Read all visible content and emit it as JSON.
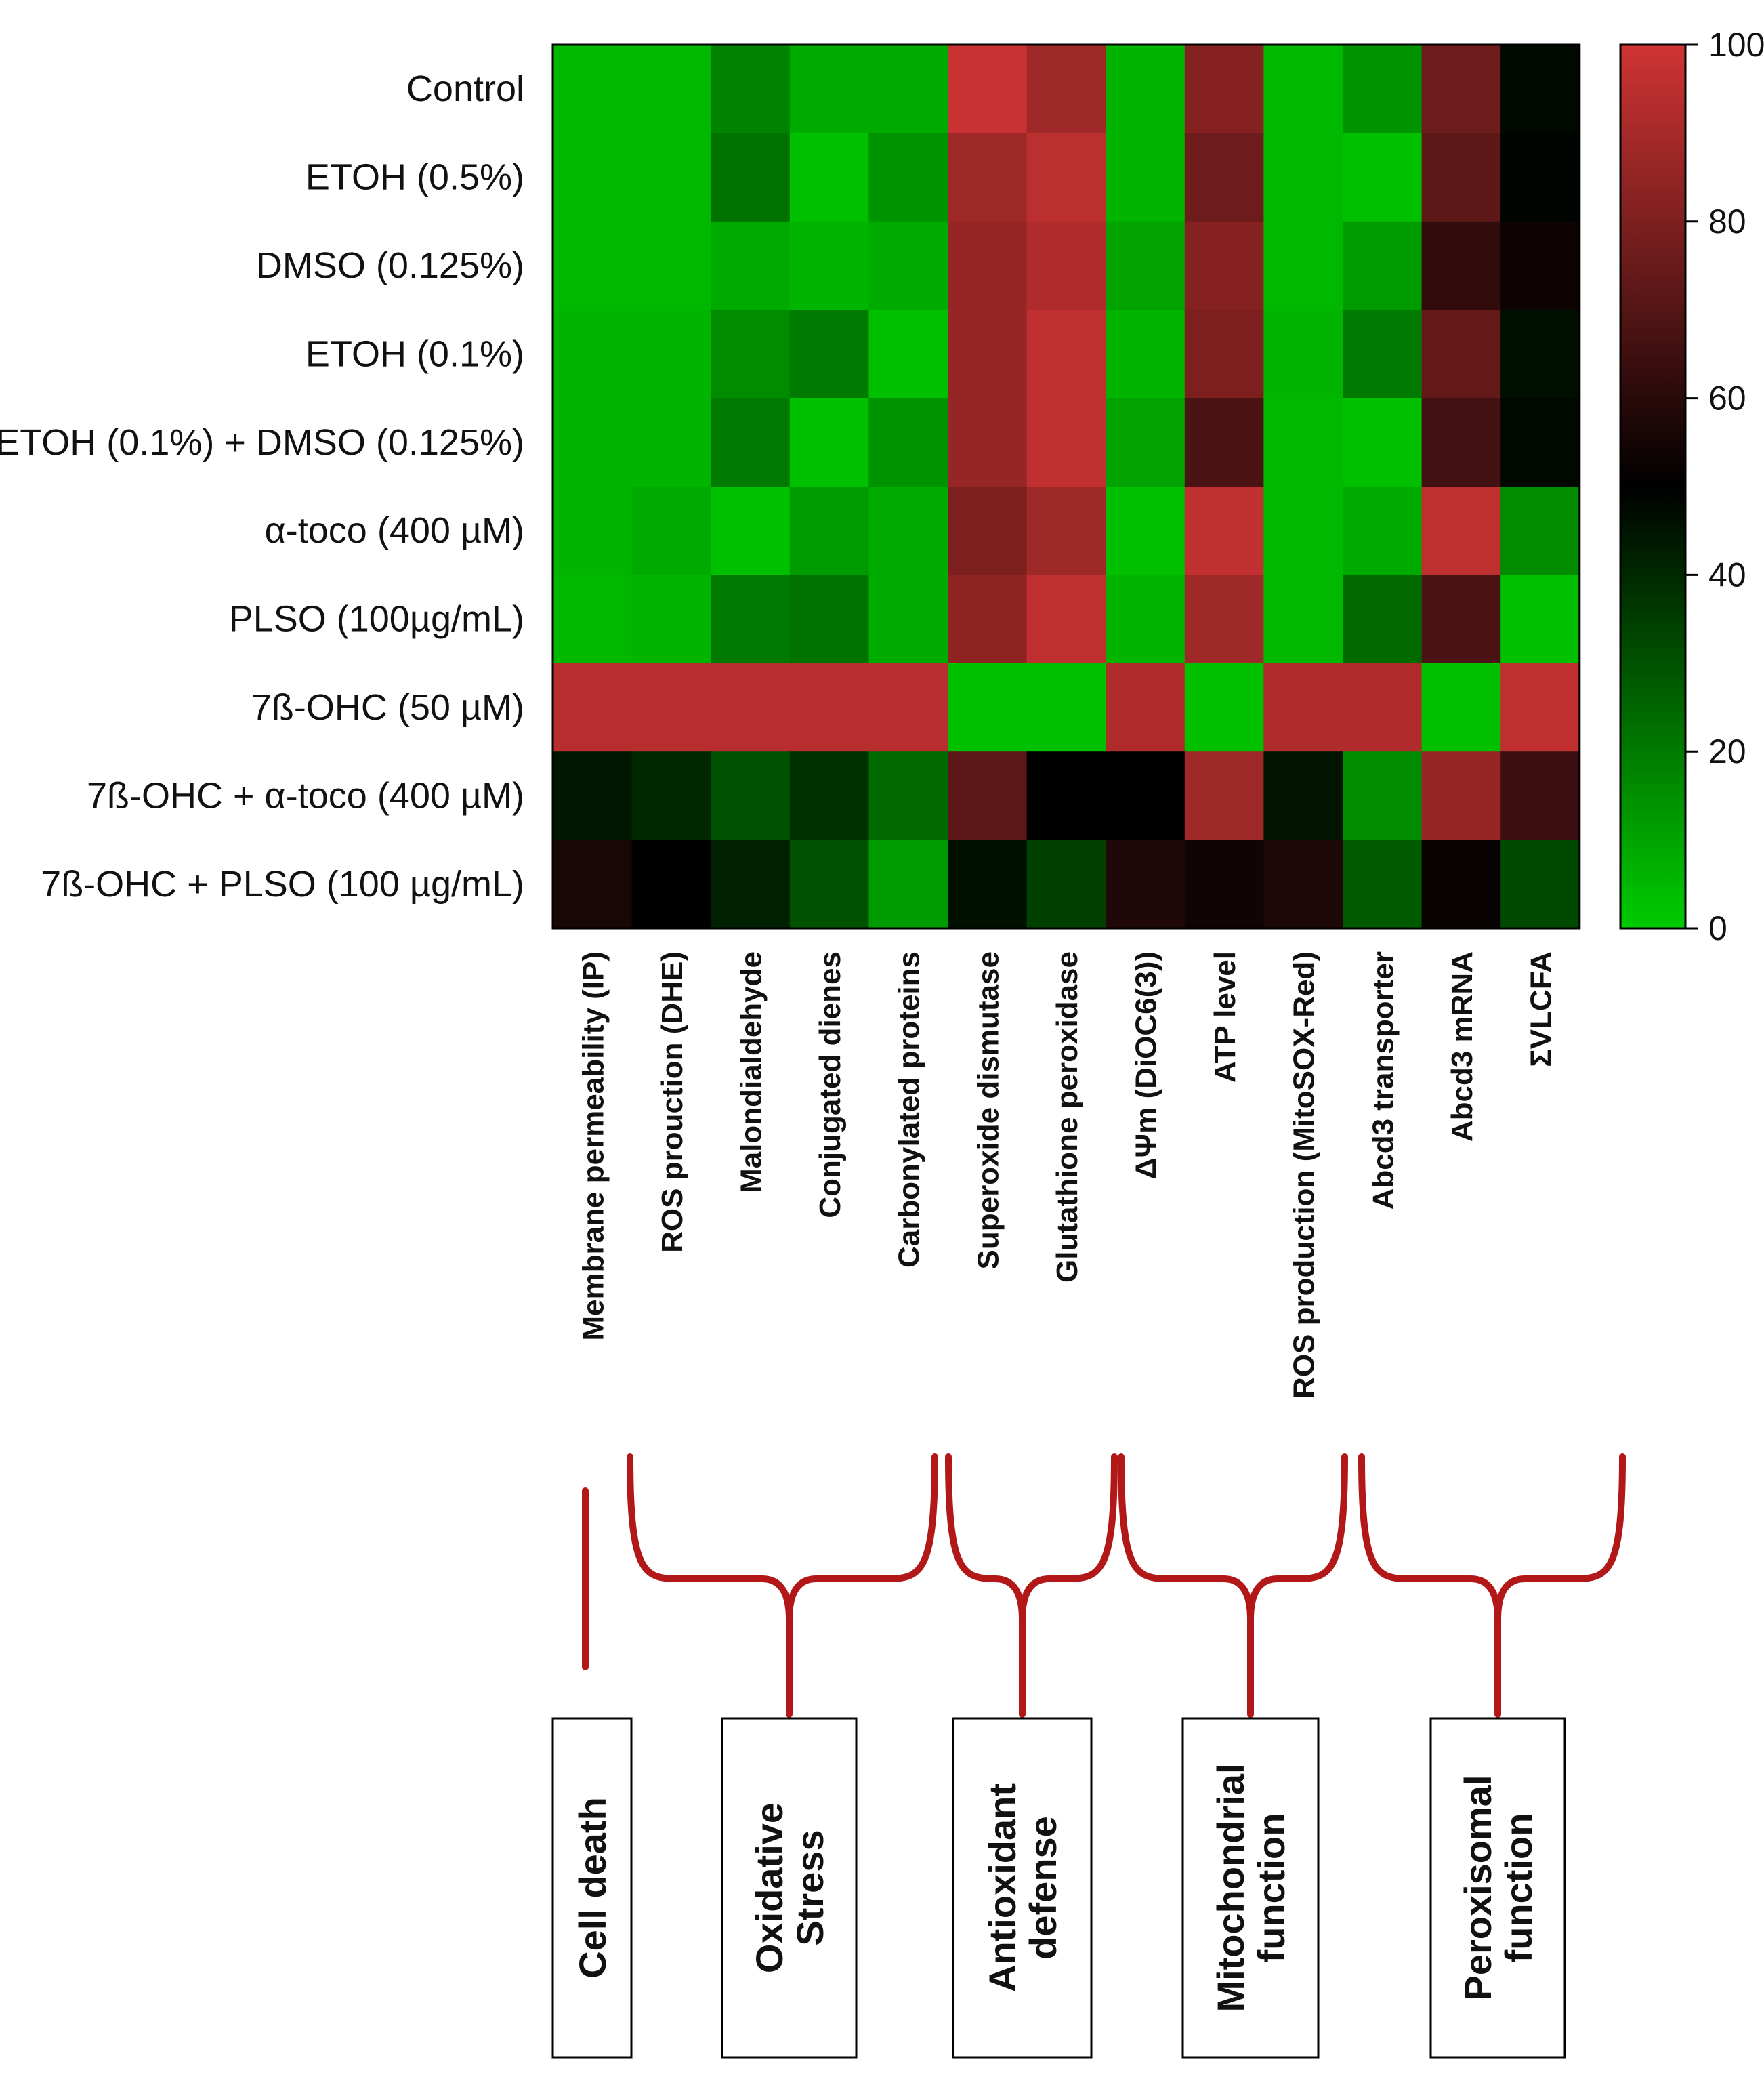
{
  "chart_data": {
    "type": "heatmap",
    "rows": [
      "Control",
      "ETOH (0.5%)",
      "DMSO (0.125%)",
      "ETOH (0.1%)",
      "ETOH (0.1%) + DMSO (0.125%)",
      "α-toco (400 µM)",
      "PLSO (100µg/mL)",
      "7ß-OHC (50 µM)",
      "7ß-OHC + α-toco (400 µM)",
      "7ß-OHC + PLSO (100 µg/mL)"
    ],
    "columns": [
      "Membrane permeability (IP)",
      "ROS prouction (DHE)",
      "Malondialdehyde",
      "Conjugated dienes",
      "Carbonylated proteins",
      "Superoxide dismutase",
      "Glutathione peroxidase",
      "ΔΨm (DiOC6(3))",
      "ATP level",
      "ROS production (MitoSOX-Red)",
      "Abcd3 transporter",
      "Abcd3 mRNA",
      "ΣVLCFA"
    ],
    "values": [
      [
        5,
        5,
        18,
        8,
        8,
        98,
        88,
        6,
        82,
        5,
        14,
        76,
        48
      ],
      [
        5,
        5,
        22,
        3,
        14,
        88,
        95,
        6,
        76,
        5,
        3,
        72,
        49
      ],
      [
        5,
        5,
        8,
        6,
        8,
        86,
        92,
        10,
        82,
        5,
        12,
        62,
        53
      ],
      [
        6,
        6,
        16,
        20,
        3,
        86,
        96,
        6,
        80,
        6,
        20,
        74,
        46
      ],
      [
        6,
        6,
        20,
        3,
        14,
        86,
        96,
        10,
        68,
        5,
        3,
        66,
        48
      ],
      [
        6,
        8,
        3,
        12,
        8,
        80,
        88,
        3,
        96,
        5,
        8,
        96,
        16
      ],
      [
        5,
        6,
        20,
        22,
        8,
        84,
        96,
        6,
        88,
        5,
        24,
        68,
        3
      ],
      [
        94,
        94,
        94,
        94,
        94,
        3,
        3,
        92,
        3,
        92,
        92,
        3,
        96
      ],
      [
        44,
        40,
        30,
        38,
        24,
        72,
        50,
        50,
        88,
        45,
        16,
        86,
        64
      ],
      [
        56,
        50,
        42,
        30,
        12,
        46,
        34,
        58,
        54,
        57,
        28,
        52,
        32
      ]
    ],
    "scale": {
      "min": 0,
      "mid": 50,
      "max": 100,
      "ticks": [
        "0",
        "20",
        "40",
        "60",
        "80",
        "100"
      ],
      "tick_values": [
        0,
        20,
        40,
        60,
        80,
        100
      ],
      "color_low": "#00cc00",
      "color_mid": "#000000",
      "color_high": "#d13434"
    },
    "groups": [
      {
        "label_lines": [
          "Cell death"
        ],
        "first_col": 0,
        "last_col": 0
      },
      {
        "label_lines": [
          "Oxidative",
          "Stress"
        ],
        "first_col": 1,
        "last_col": 4
      },
      {
        "label_lines": [
          "Antioxidant",
          "defense"
        ],
        "first_col": 5,
        "last_col": 6
      },
      {
        "label_lines": [
          "Mitochondrial",
          "function"
        ],
        "first_col": 7,
        "last_col": 9
      },
      {
        "label_lines": [
          "Peroxisomal",
          "function"
        ],
        "first_col": 10,
        "last_col": 12
      }
    ],
    "bracket_color": "#b21818"
  }
}
